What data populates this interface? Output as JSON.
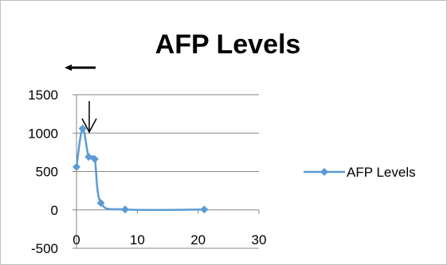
{
  "colors": {
    "series": "#5B9BD5",
    "grid": "#868686",
    "axis": "#868686",
    "text": "#000000",
    "annotation": "#000000"
  },
  "annotations": [
    {
      "name": "left-arrow",
      "direction": "left"
    },
    {
      "name": "down-arrow",
      "direction": "down"
    }
  ],
  "chart_data": {
    "type": "scatter",
    "title": "AFP Levels",
    "xlabel": "",
    "ylabel": "",
    "xlim": [
      0,
      30
    ],
    "ylim": [
      -500,
      1500
    ],
    "x_ticks": [
      0,
      10,
      20,
      30
    ],
    "y_ticks": [
      1500,
      1000,
      500,
      0,
      -500
    ],
    "grid": "horizontal",
    "smoothed": true,
    "marker": "diamond",
    "legend_position": "right",
    "series": [
      {
        "name": "AFP Levels",
        "x": [
          0,
          1,
          2,
          3,
          4,
          8,
          21
        ],
        "y": [
          560,
          1060,
          690,
          660,
          90,
          5,
          5
        ]
      }
    ]
  }
}
